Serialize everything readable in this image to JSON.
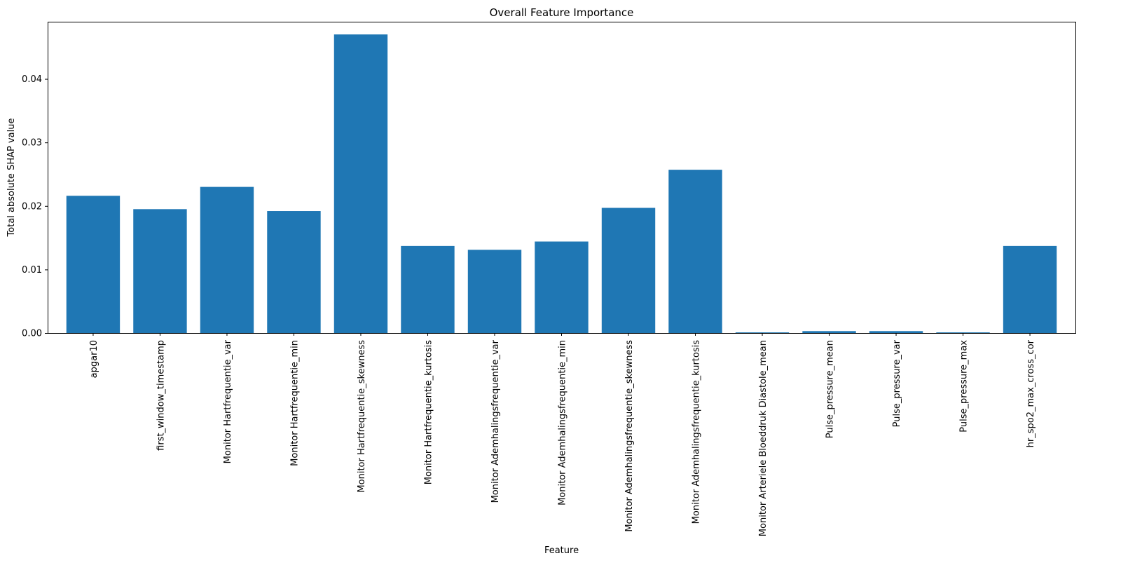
{
  "chart_data": {
    "type": "bar",
    "title": "Overall Feature Importance",
    "xlabel": "Feature",
    "ylabel": "Total absolute SHAP value",
    "categories": [
      "apgar10",
      "first_window_timestamp",
      "Monitor Hartfrequentie_var",
      "Monitor Hartfrequentie_min",
      "Monitor Hartfrequentie_skewness",
      "Monitor Hartfrequentie_kurtosis",
      "Monitor Ademhalingsfrequentie_var",
      "Monitor Ademhalingsfrequentie_min",
      "Monitor Ademhalingsfrequentie_skewness",
      "Monitor Ademhalingsfrequentie_kurtosis",
      "Monitor Arteriele Bloeddruk Diastole_mean",
      "Pulse_pressure_mean",
      "Pulse_pressure_var",
      "Pulse_pressure_max",
      "hr_spo2_max_cross_cor"
    ],
    "values": [
      0.0216,
      0.0195,
      0.023,
      0.0192,
      0.047,
      0.0137,
      0.0131,
      0.0144,
      0.0197,
      0.0257,
      0.0001,
      0.0003,
      0.0003,
      0.0001,
      0.0137
    ],
    "ylim": [
      0,
      0.049
    ],
    "yticks": [
      0.0,
      0.01,
      0.02,
      0.03,
      0.04
    ],
    "ytick_labels": [
      "0.00",
      "0.01",
      "0.02",
      "0.03",
      "0.04"
    ],
    "bar_color": "#1f77b4",
    "grid": false
  }
}
